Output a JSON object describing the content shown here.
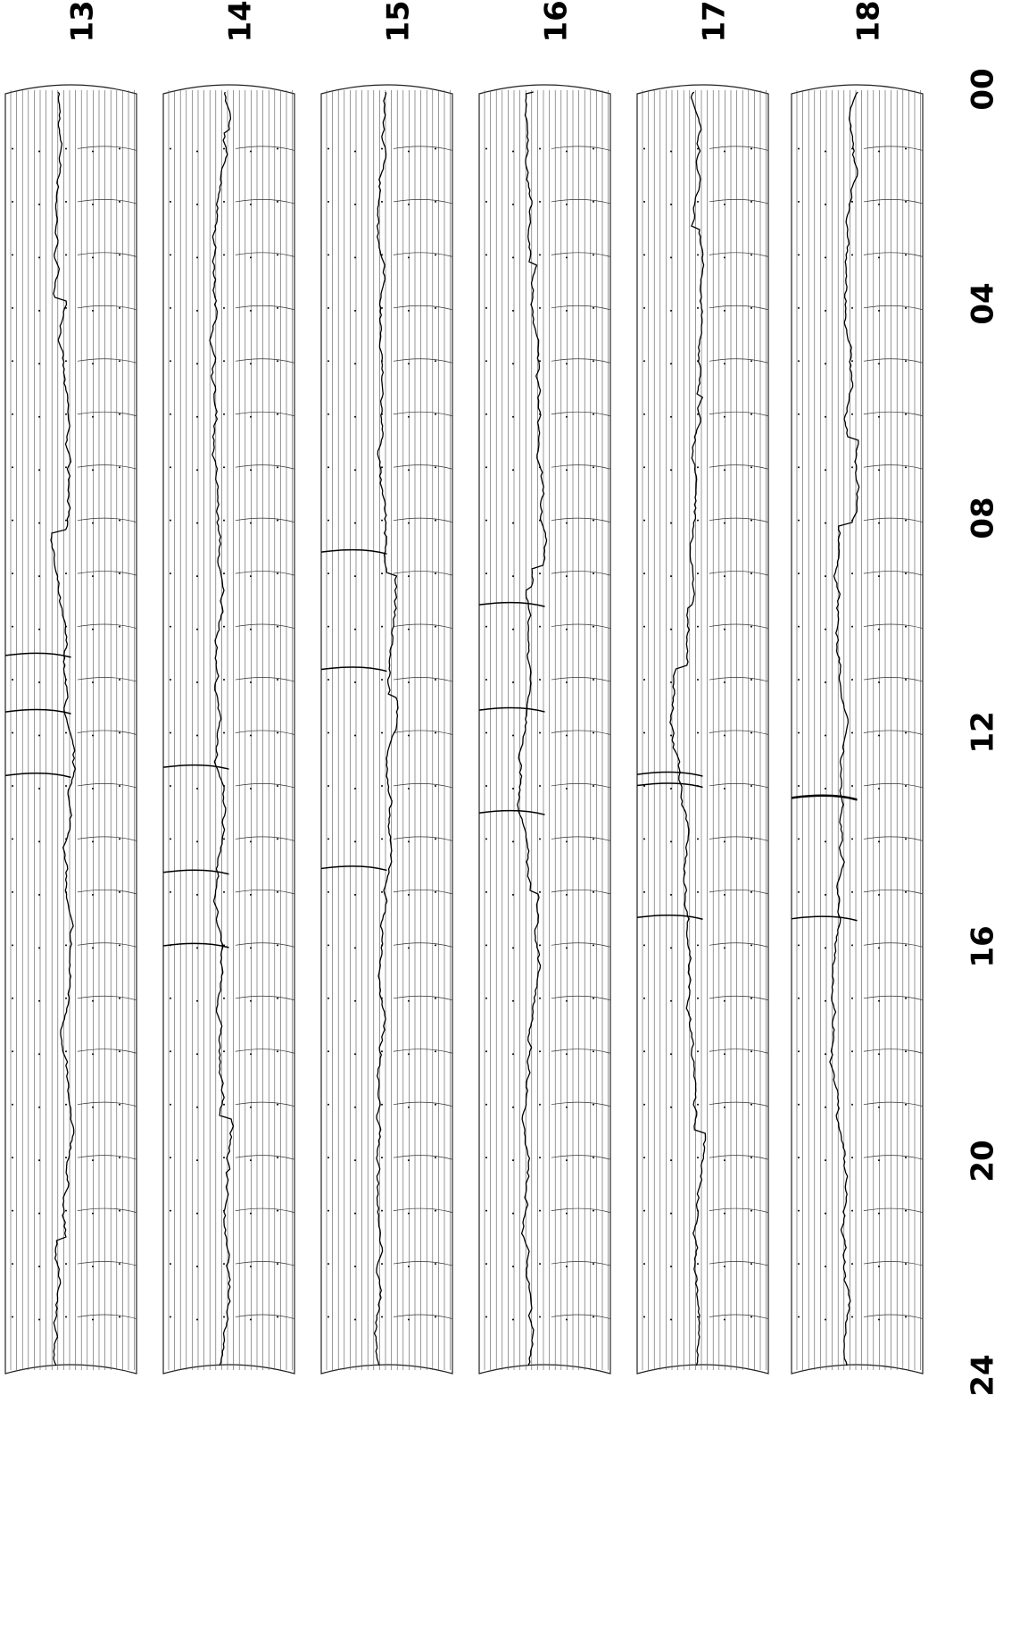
{
  "day_labels": [
    "13",
    "14",
    "15",
    "16",
    "17",
    "18"
  ],
  "hour_labels": [
    "00",
    "04",
    "08",
    "12",
    "16",
    "20",
    "24"
  ]
}
